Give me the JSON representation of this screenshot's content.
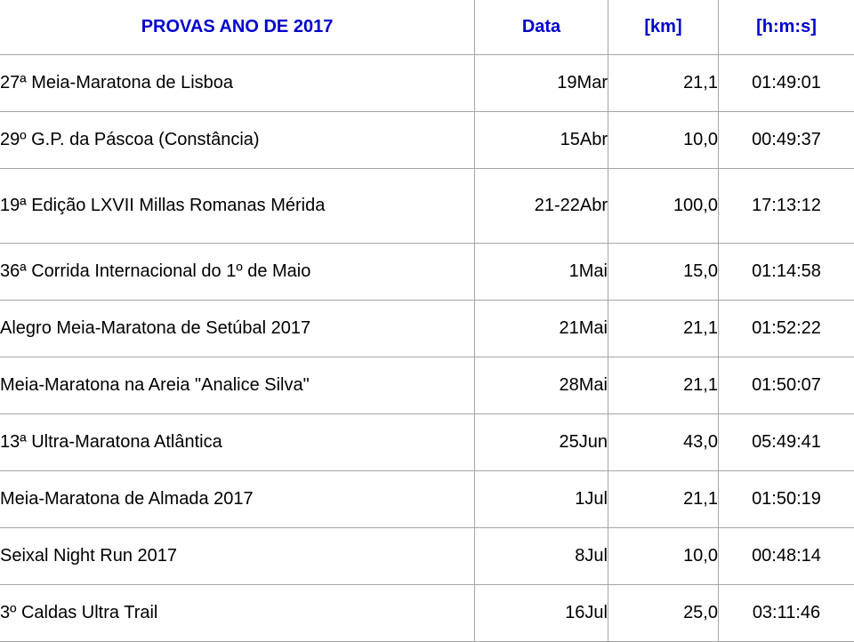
{
  "header_color": "#0000cc",
  "table": {
    "headers": {
      "name": "PROVAS ANO DE 2017",
      "date": "Data",
      "km": "[km]",
      "time": "[h:m:s]"
    },
    "rows": [
      {
        "name": "27ª Meia-Maratona de Lisboa",
        "date": "19Mar",
        "km": "21,1",
        "time": "01:49:01"
      },
      {
        "name": "29º G.P. da Páscoa (Constância)",
        "date": "15Abr",
        "km": "10,0",
        "time": "00:49:37"
      },
      {
        "name": "19ª Edição LXVII Millas Romanas Mérida",
        "date": "21-22Abr",
        "km": "100,0",
        "time": "17:13:12"
      },
      {
        "name": "36ª Corrida Internacional do 1º de Maio",
        "date": "1Mai",
        "km": "15,0",
        "time": "01:14:58"
      },
      {
        "name": "Alegro Meia-Maratona de Setúbal 2017",
        "date": "21Mai",
        "km": "21,1",
        "time": "01:52:22"
      },
      {
        "name": "Meia-Maratona na Areia \"Analice Silva\"",
        "date": "28Mai",
        "km": "21,1",
        "time": "01:50:07"
      },
      {
        "name": "13ª Ultra-Maratona Atlântica",
        "date": "25Jun",
        "km": "43,0",
        "time": "05:49:41"
      },
      {
        "name": "Meia-Maratona de Almada 2017",
        "date": "1Jul",
        "km": "21,1",
        "time": "01:50:19"
      },
      {
        "name": "Seixal Night Run 2017",
        "date": "8Jul",
        "km": "10,0",
        "time": "00:48:14"
      },
      {
        "name": "3º Caldas Ultra Trail",
        "date": "16Jul",
        "km": "25,0",
        "time": "03:11:46"
      }
    ]
  }
}
